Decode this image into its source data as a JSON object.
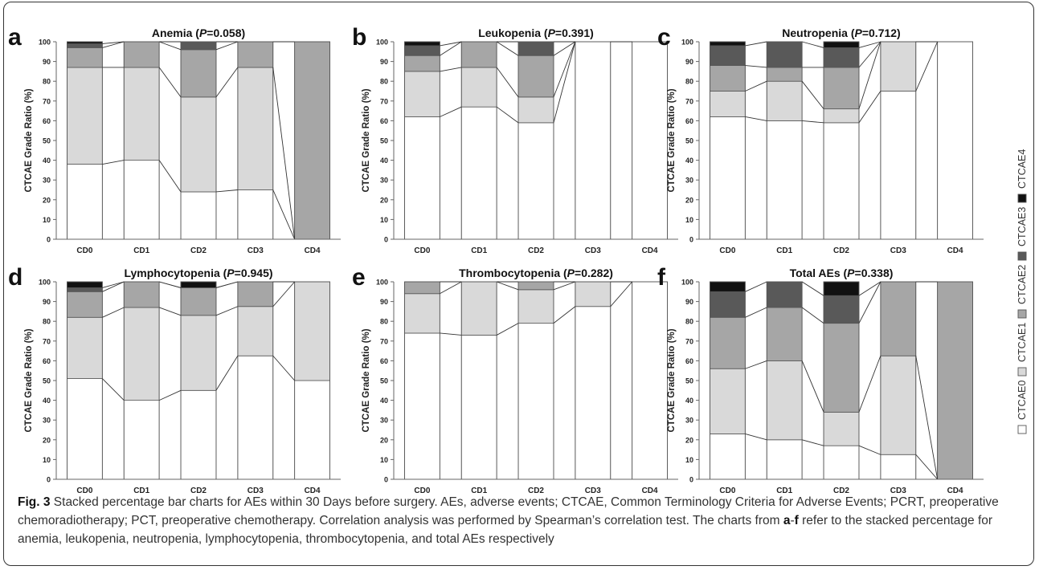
{
  "colors": {
    "CTCAE0": "#ffffff",
    "CTCAE1": "#d9d9d9",
    "CTCAE2": "#a6a6a6",
    "CTCAE3": "#595959",
    "CTCAE4": "#111111"
  },
  "legend": {
    "items": [
      "CTCAE0",
      "CTCAE1",
      "CTCAE2",
      "CTCAE3",
      "CTCAE4"
    ],
    "placement": "right, vertical"
  },
  "caption": {
    "figure_label": "Fig. 3",
    "text": "Stacked percentage bar charts for AEs within 30 Days before surgery. AEs, adverse events; CTCAE, Common Terminology Criteria for Adverse Events; PCRT, preoperative chemoradiotherapy; PCT, preoperative chemotherapy. Correlation analysis was performed by Spearman’s correlation test. The charts from ",
    "range_start": "a",
    "range_sep": "-",
    "range_end": "f",
    "text_end": " refer to the stacked percentage for anemia, leukopenia, neutropenia, lymphocytopenia, thrombocytopenia, and total AEs respectively"
  },
  "chart_data": [
    {
      "type": "bar",
      "panel": "a",
      "title": "Anemia (",
      "title_p": "P",
      "title_rest": "=0.058)",
      "ylabel": "CTCAE Grade Ratio (%)",
      "ylim": [
        0,
        100
      ],
      "yticks": [
        0,
        10,
        20,
        30,
        40,
        50,
        60,
        70,
        80,
        90,
        100
      ],
      "categories": [
        "CD0",
        "CD1",
        "CD2",
        "CD3",
        "CD4"
      ],
      "series": [
        {
          "name": "CTCAE0",
          "values": [
            38,
            40,
            24,
            25,
            0
          ]
        },
        {
          "name": "CTCAE1",
          "values": [
            49,
            47,
            48,
            62,
            0
          ]
        },
        {
          "name": "CTCAE2",
          "values": [
            10,
            13,
            24,
            13,
            100
          ]
        },
        {
          "name": "CTCAE3",
          "values": [
            2,
            0,
            4,
            0,
            0
          ]
        },
        {
          "name": "CTCAE4",
          "values": [
            1,
            0,
            0,
            0,
            0
          ]
        }
      ]
    },
    {
      "type": "bar",
      "panel": "b",
      "title": "Leukopenia (",
      "title_p": "P",
      "title_rest": "=0.391)",
      "ylabel": "CTCAE Grade Ratio (%)",
      "ylim": [
        0,
        100
      ],
      "yticks": [
        0,
        10,
        20,
        30,
        40,
        50,
        60,
        70,
        80,
        90,
        100
      ],
      "categories": [
        "CD0",
        "CD1",
        "CD2",
        "CD3",
        "CD4"
      ],
      "series": [
        {
          "name": "CTCAE0",
          "values": [
            62,
            67,
            59,
            100,
            100
          ]
        },
        {
          "name": "CTCAE1",
          "values": [
            23,
            20,
            13,
            0,
            0
          ]
        },
        {
          "name": "CTCAE2",
          "values": [
            8,
            13,
            21,
            0,
            0
          ]
        },
        {
          "name": "CTCAE3",
          "values": [
            5,
            0,
            7,
            0,
            0
          ]
        },
        {
          "name": "CTCAE4",
          "values": [
            2,
            0,
            0,
            0,
            0
          ]
        }
      ]
    },
    {
      "type": "bar",
      "panel": "c",
      "title": "Neutropenia (",
      "title_p": "P",
      "title_rest": "=0.712)",
      "ylabel": "CTCAE Grade Ratio (%)",
      "ylim": [
        0,
        100
      ],
      "yticks": [
        0,
        10,
        20,
        30,
        40,
        50,
        60,
        70,
        80,
        90,
        100
      ],
      "categories": [
        "CD0",
        "CD1",
        "CD2",
        "CD3",
        "CD4"
      ],
      "series": [
        {
          "name": "CTCAE0",
          "values": [
            62,
            60,
            59,
            75,
            100
          ]
        },
        {
          "name": "CTCAE1",
          "values": [
            13,
            20,
            7,
            25,
            0
          ]
        },
        {
          "name": "CTCAE2",
          "values": [
            13,
            7,
            21,
            0,
            0
          ]
        },
        {
          "name": "CTCAE3",
          "values": [
            10,
            13,
            10,
            0,
            0
          ]
        },
        {
          "name": "CTCAE4",
          "values": [
            2,
            0,
            3,
            0,
            0
          ]
        }
      ]
    },
    {
      "type": "bar",
      "panel": "d",
      "title": "Lymphocytopenia (",
      "title_p": "P",
      "title_rest": "=0.945)",
      "ylabel": "CTCAE Grade Ratio (%)",
      "ylim": [
        0,
        100
      ],
      "yticks": [
        0,
        10,
        20,
        30,
        40,
        50,
        60,
        70,
        80,
        90,
        100
      ],
      "categories": [
        "CD0",
        "CD1",
        "CD2",
        "CD3",
        "CD4"
      ],
      "series": [
        {
          "name": "CTCAE0",
          "values": [
            51,
            40,
            45,
            62.5,
            50
          ]
        },
        {
          "name": "CTCAE1",
          "values": [
            31,
            47,
            38,
            25,
            50
          ]
        },
        {
          "name": "CTCAE2",
          "values": [
            13,
            13,
            14,
            12.5,
            0
          ]
        },
        {
          "name": "CTCAE3",
          "values": [
            2,
            0,
            0,
            0,
            0
          ]
        },
        {
          "name": "CTCAE4",
          "values": [
            3,
            0,
            3,
            0,
            0
          ]
        }
      ]
    },
    {
      "type": "bar",
      "panel": "e",
      "title": "Thrombocytopenia (",
      "title_p": "P",
      "title_rest": "=0.282)",
      "ylabel": "CTCAE Grade Ratio (%)",
      "ylim": [
        0,
        100
      ],
      "yticks": [
        0,
        10,
        20,
        30,
        40,
        50,
        60,
        70,
        80,
        90,
        100
      ],
      "categories": [
        "CD0",
        "CD1",
        "CD2",
        "CD3",
        "CD4"
      ],
      "series": [
        {
          "name": "CTCAE0",
          "values": [
            74,
            73,
            79,
            87.5,
            100
          ]
        },
        {
          "name": "CTCAE1",
          "values": [
            20,
            27,
            17,
            12.5,
            0
          ]
        },
        {
          "name": "CTCAE2",
          "values": [
            6,
            0,
            4,
            0,
            0
          ]
        },
        {
          "name": "CTCAE3",
          "values": [
            0,
            0,
            0,
            0,
            0
          ]
        },
        {
          "name": "CTCAE4",
          "values": [
            0,
            0,
            0,
            0,
            0
          ]
        }
      ]
    },
    {
      "type": "bar",
      "panel": "f",
      "title": "Total AEs (",
      "title_p": "P",
      "title_rest": "=0.338)",
      "ylabel": "CTCAE Grade Ratio (%)",
      "ylim": [
        0,
        100
      ],
      "yticks": [
        0,
        10,
        20,
        30,
        40,
        50,
        60,
        70,
        80,
        90,
        100
      ],
      "categories": [
        "CD0",
        "CD1",
        "CD2",
        "CD3",
        "CD4"
      ],
      "series": [
        {
          "name": "CTCAE0",
          "values": [
            23,
            20,
            17,
            12.5,
            0
          ]
        },
        {
          "name": "CTCAE1",
          "values": [
            33,
            40,
            17,
            50,
            0
          ]
        },
        {
          "name": "CTCAE2",
          "values": [
            26,
            27,
            45,
            37.5,
            100
          ]
        },
        {
          "name": "CTCAE3",
          "values": [
            13,
            13,
            14,
            0,
            0
          ]
        },
        {
          "name": "CTCAE4",
          "values": [
            5,
            0,
            7,
            0,
            0
          ]
        }
      ]
    }
  ]
}
